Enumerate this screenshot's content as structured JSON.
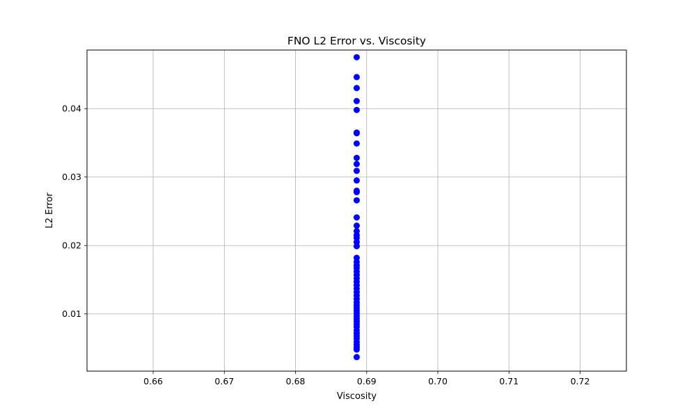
{
  "chart_data": {
    "type": "scatter",
    "title": "FNO L2 Error vs. Viscosity",
    "xlabel": "Viscosity",
    "ylabel": "L2 Error",
    "xlim": [
      0.6507,
      0.7265
    ],
    "ylim": [
      0.00165,
      0.04855
    ],
    "xticks": [
      0.66,
      0.67,
      0.68,
      0.69,
      0.7,
      0.71,
      0.72
    ],
    "xtick_labels": [
      "0.66",
      "0.67",
      "0.68",
      "0.69",
      "0.70",
      "0.71",
      "0.72"
    ],
    "yticks": [
      0.01,
      0.02,
      0.03,
      0.04
    ],
    "ytick_labels": [
      "0.01",
      "0.02",
      "0.03",
      "0.04"
    ],
    "grid": true,
    "marker_color": "#0000ff",
    "series": [
      {
        "x": [
          0.6886,
          0.6886,
          0.6886,
          0.6886,
          0.6886,
          0.6886,
          0.6886,
          0.6886,
          0.6886,
          0.6886,
          0.6886,
          0.6886,
          0.6886,
          0.6886,
          0.6886,
          0.6886,
          0.6886,
          0.6886,
          0.6886,
          0.6886,
          0.6886,
          0.6886,
          0.6886,
          0.6886,
          0.6886,
          0.6886,
          0.6886,
          0.6886,
          0.6886,
          0.6886,
          0.6886,
          0.6886,
          0.6886,
          0.6886,
          0.6886,
          0.6886,
          0.6886,
          0.6886,
          0.6886,
          0.6886,
          0.6886,
          0.6886,
          0.6886,
          0.6886,
          0.6886,
          0.6886,
          0.6886,
          0.6886,
          0.6886,
          0.6886,
          0.6886,
          0.6886,
          0.6886,
          0.6886
        ],
        "y": [
          0.0475,
          0.0446,
          0.043,
          0.0411,
          0.0398,
          0.0365,
          0.0364,
          0.0349,
          0.0328,
          0.0319,
          0.0309,
          0.0295,
          0.028,
          0.0278,
          0.0266,
          0.0241,
          0.0229,
          0.0221,
          0.0215,
          0.0211,
          0.0205,
          0.0199,
          0.0182,
          0.0176,
          0.0171,
          0.0167,
          0.0162,
          0.0157,
          0.0152,
          0.0147,
          0.0142,
          0.0137,
          0.0132,
          0.0127,
          0.0122,
          0.0117,
          0.0113,
          0.0109,
          0.0105,
          0.0101,
          0.0097,
          0.0093,
          0.0089,
          0.0085,
          0.0081,
          0.0076,
          0.0072,
          0.0068,
          0.0064,
          0.0059,
          0.0055,
          0.0051,
          0.0048,
          0.0037
        ]
      }
    ]
  }
}
